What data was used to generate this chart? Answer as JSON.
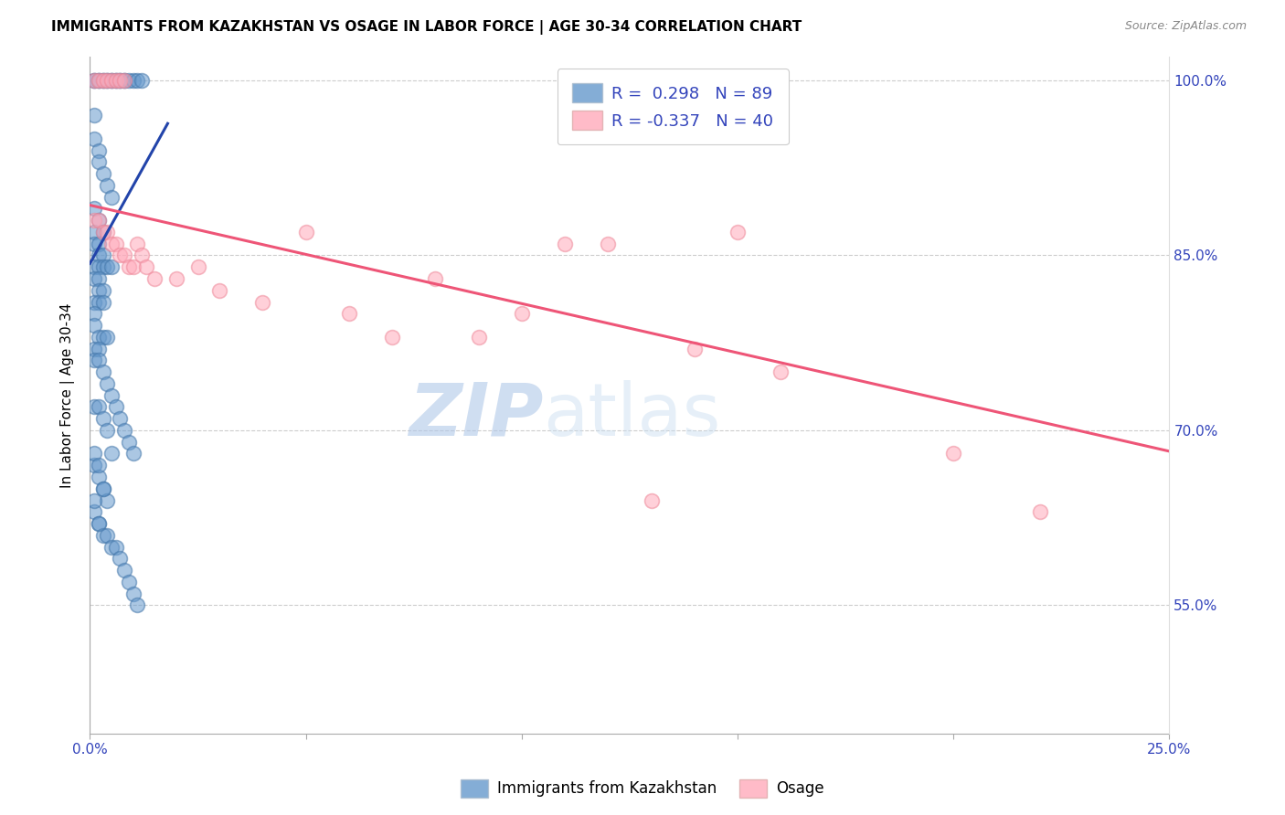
{
  "title": "IMMIGRANTS FROM KAZAKHSTAN VS OSAGE IN LABOR FORCE | AGE 30-34 CORRELATION CHART",
  "source": "Source: ZipAtlas.com",
  "ylabel": "In Labor Force | Age 30-34",
  "xmin": 0.0,
  "xmax": 0.25,
  "ymin": 0.44,
  "ymax": 1.02,
  "yticks": [
    0.55,
    0.7,
    0.85,
    1.0
  ],
  "ytick_labels": [
    "55.0%",
    "70.0%",
    "85.0%",
    "100.0%"
  ],
  "xticks": [
    0.0,
    0.05,
    0.1,
    0.15,
    0.2,
    0.25
  ],
  "xtick_labels": [
    "0.0%",
    "",
    "",
    "",
    "",
    "25.0%"
  ],
  "blue_color": "#6699cc",
  "pink_color": "#ffaabb",
  "blue_edge_color": "#4477aa",
  "pink_edge_color": "#ee8899",
  "blue_line_color": "#2244aa",
  "pink_line_color": "#ee5577",
  "watermark_zip": "ZIP",
  "watermark_atlas": "atlas",
  "blue_scatter_x": [
    0.001,
    0.001,
    0.002,
    0.002,
    0.003,
    0.003,
    0.004,
    0.004,
    0.005,
    0.005,
    0.006,
    0.006,
    0.007,
    0.007,
    0.008,
    0.008,
    0.009,
    0.01,
    0.011,
    0.012,
    0.001,
    0.001,
    0.002,
    0.002,
    0.003,
    0.004,
    0.005,
    0.001,
    0.002,
    0.003,
    0.001,
    0.001,
    0.002,
    0.002,
    0.003,
    0.001,
    0.002,
    0.003,
    0.004,
    0.005,
    0.001,
    0.002,
    0.002,
    0.003,
    0.001,
    0.002,
    0.003,
    0.001,
    0.001,
    0.002,
    0.003,
    0.004,
    0.001,
    0.002,
    0.001,
    0.002,
    0.003,
    0.004,
    0.005,
    0.006,
    0.007,
    0.008,
    0.009,
    0.01,
    0.001,
    0.002,
    0.003,
    0.004,
    0.001,
    0.002,
    0.001,
    0.002,
    0.003,
    0.004,
    0.005,
    0.001,
    0.002,
    0.003,
    0.001,
    0.002,
    0.003,
    0.004,
    0.005,
    0.006,
    0.007,
    0.008,
    0.009,
    0.01,
    0.011
  ],
  "blue_scatter_y": [
    1.0,
    1.0,
    1.0,
    1.0,
    1.0,
    1.0,
    1.0,
    1.0,
    1.0,
    1.0,
    1.0,
    1.0,
    1.0,
    1.0,
    1.0,
    1.0,
    1.0,
    1.0,
    1.0,
    1.0,
    0.97,
    0.95,
    0.94,
    0.93,
    0.92,
    0.91,
    0.9,
    0.89,
    0.88,
    0.87,
    0.87,
    0.86,
    0.86,
    0.85,
    0.85,
    0.84,
    0.84,
    0.84,
    0.84,
    0.84,
    0.83,
    0.83,
    0.82,
    0.82,
    0.81,
    0.81,
    0.81,
    0.8,
    0.79,
    0.78,
    0.78,
    0.78,
    0.77,
    0.77,
    0.76,
    0.76,
    0.75,
    0.74,
    0.73,
    0.72,
    0.71,
    0.7,
    0.69,
    0.68,
    0.67,
    0.66,
    0.65,
    0.64,
    0.63,
    0.62,
    0.72,
    0.72,
    0.71,
    0.7,
    0.68,
    0.68,
    0.67,
    0.65,
    0.64,
    0.62,
    0.61,
    0.61,
    0.6,
    0.6,
    0.59,
    0.58,
    0.57,
    0.56,
    0.55
  ],
  "pink_scatter_x": [
    0.001,
    0.002,
    0.003,
    0.004,
    0.005,
    0.006,
    0.007,
    0.008,
    0.001,
    0.002,
    0.003,
    0.004,
    0.005,
    0.006,
    0.007,
    0.008,
    0.009,
    0.01,
    0.011,
    0.012,
    0.013,
    0.015,
    0.02,
    0.025,
    0.03,
    0.04,
    0.05,
    0.06,
    0.07,
    0.08,
    0.09,
    0.1,
    0.11,
    0.12,
    0.13,
    0.14,
    0.15,
    0.16,
    0.2,
    0.22
  ],
  "pink_scatter_y": [
    1.0,
    1.0,
    1.0,
    1.0,
    1.0,
    1.0,
    1.0,
    1.0,
    0.88,
    0.88,
    0.87,
    0.87,
    0.86,
    0.86,
    0.85,
    0.85,
    0.84,
    0.84,
    0.86,
    0.85,
    0.84,
    0.83,
    0.83,
    0.84,
    0.82,
    0.81,
    0.87,
    0.8,
    0.78,
    0.83,
    0.78,
    0.8,
    0.86,
    0.86,
    0.64,
    0.77,
    0.87,
    0.75,
    0.68,
    0.63
  ],
  "blue_trendline_x": [
    0.0,
    0.018
  ],
  "blue_trendline_y": [
    0.843,
    0.963
  ],
  "pink_trendline_x": [
    0.0,
    0.25
  ],
  "pink_trendline_y": [
    0.893,
    0.682
  ]
}
